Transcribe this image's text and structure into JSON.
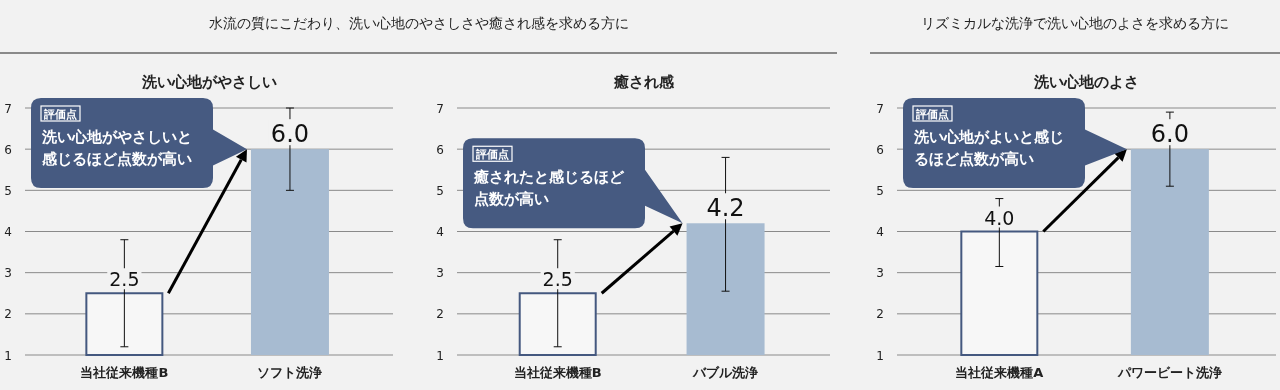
{
  "chart_data": [
    {
      "type": "bar",
      "subtitle": "水流の質にこだわり、洗い心地のやさしさや癒され感を求める方に",
      "title": "洗い心地がやさしい",
      "categories": [
        "当社従来機種B",
        "ソフト洗浄"
      ],
      "values": [
        2.5,
        6.0
      ],
      "colors": [
        "#44587f",
        "#a7bbd1"
      ],
      "errors": [
        [
          1.2,
          3.8
        ],
        [
          5.0,
          7.0
        ]
      ],
      "value_labels": [
        "2.5",
        "6.0"
      ],
      "annotations": [
        "評価点",
        "洗い心地がやさしいと感じるほど点数が高い"
      ],
      "ylim": [
        1,
        7
      ],
      "yticks": [
        1,
        2,
        3,
        4,
        5,
        6,
        7
      ],
      "grid": "y"
    },
    {
      "type": "bar",
      "title": "癒され感",
      "categories": [
        "当社従来機種B",
        "バブル洗浄"
      ],
      "values": [
        2.5,
        4.2
      ],
      "colors": [
        "#44587f",
        "#a7bbd1"
      ],
      "errors": [
        [
          1.2,
          3.8
        ],
        [
          2.55,
          5.8
        ]
      ],
      "value_labels": [
        "2.5",
        "4.2"
      ],
      "annotations": [
        "評価点",
        "癒されたと感じるほど点数が高い"
      ],
      "ylim": [
        1,
        7
      ],
      "yticks": [
        1,
        2,
        3,
        4,
        5,
        6,
        7
      ],
      "grid": "y"
    },
    {
      "type": "bar",
      "subtitle": "リズミカルな洗浄で洗い心地のよさを求める方に",
      "title": "洗い心地のよさ",
      "categories": [
        "当社従来機種A",
        "パワービート洗浄"
      ],
      "values": [
        4.0,
        6.0
      ],
      "colors": [
        "#44587f",
        "#a7bbd1"
      ],
      "errors": [
        [
          3.15,
          4.8
        ],
        [
          5.1,
          6.9
        ]
      ],
      "value_labels": [
        "4.0",
        "6.0"
      ],
      "annotations": [
        "評価点",
        "洗い心地がよいと感じるほど点数が高い"
      ],
      "ylim": [
        1,
        7
      ],
      "yticks": [
        1,
        2,
        3,
        4,
        5,
        6,
        7
      ],
      "grid": "y"
    }
  ]
}
